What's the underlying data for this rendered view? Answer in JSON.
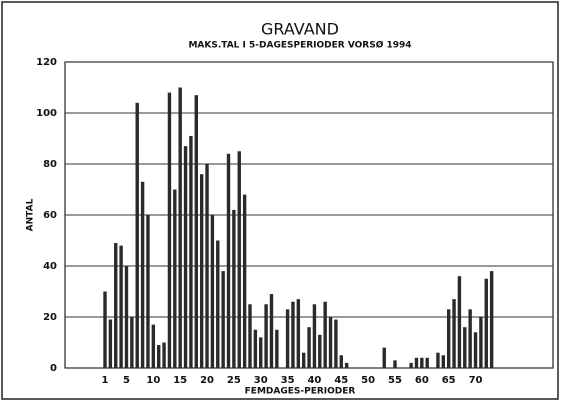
{
  "chart_data": {
    "type": "bar",
    "title": "GRAVAND",
    "subtitle": "MAKS.TAL I 5-DAGESPERIODER VORSØ 1994",
    "x_label": "FEMDAGES-PERIODER",
    "y_label": "ANTAL",
    "categories": [
      "1",
      null,
      null,
      null,
      "5",
      null,
      null,
      null,
      null,
      "10",
      null,
      null,
      null,
      null,
      "15",
      null,
      null,
      null,
      null,
      "20",
      null,
      null,
      null,
      null,
      "25",
      null,
      null,
      null,
      null,
      "30",
      null,
      null,
      null,
      null,
      "35",
      null,
      null,
      null,
      null,
      "40",
      null,
      null,
      null,
      null,
      "45",
      null,
      null,
      null,
      null,
      "50",
      null,
      null,
      null,
      null,
      "55",
      null,
      null,
      null,
      null,
      "60",
      null,
      null,
      null,
      null,
      "65",
      null,
      null,
      null,
      null,
      "70",
      null,
      null,
      null
    ],
    "values": [
      30,
      19,
      49,
      48,
      40,
      20,
      104,
      73,
      60,
      17,
      9,
      10,
      108,
      70,
      110,
      87,
      91,
      107,
      76,
      80,
      60,
      50,
      38,
      84,
      62,
      85,
      68,
      25,
      15,
      12,
      25,
      29,
      15,
      0,
      23,
      26,
      27,
      6,
      16,
      25,
      13,
      26,
      20,
      19,
      5,
      2,
      0,
      0,
      0,
      0,
      0,
      0,
      8,
      0,
      3,
      0,
      0,
      2,
      4,
      4,
      4,
      0,
      6,
      5,
      23,
      27,
      36,
      16,
      23,
      14,
      20,
      35,
      38
    ],
    "color": "#2a2a2a",
    "ylim": [
      0,
      120
    ],
    "yticks": [
      0,
      20,
      40,
      60,
      80,
      100,
      120
    ],
    "grid": true
  }
}
